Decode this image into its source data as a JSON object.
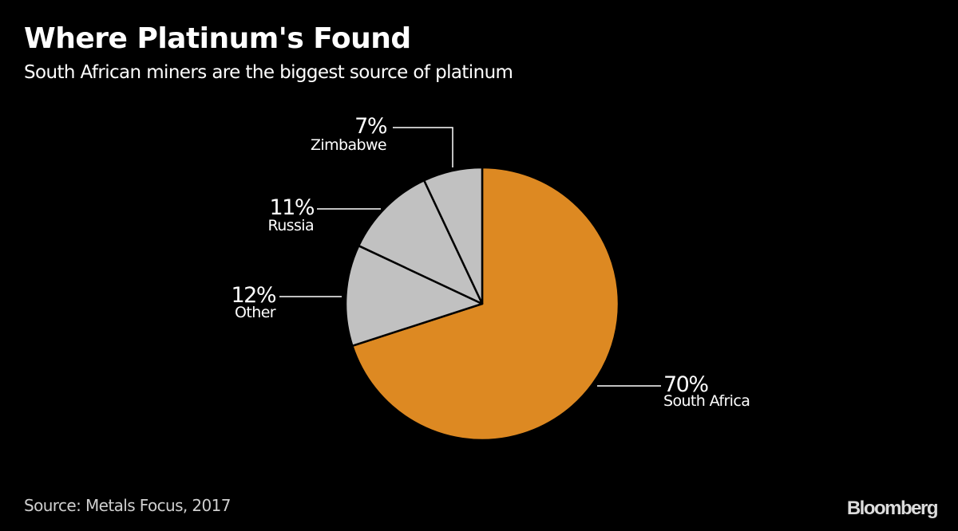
{
  "title": "Where Platinum's Found",
  "subtitle": "South African miners are the biggest source of platinum",
  "source": "Source: Metals Focus, 2017",
  "logo": "Bloomberg",
  "chart_data": {
    "type": "pie",
    "title": "Where Platinum's Found",
    "subtitle": "South African miners are the biggest source of platinum",
    "start": "top, clockwise",
    "slices": [
      {
        "label": "South Africa",
        "value": 70,
        "value_label": "70%",
        "color": "#dd8922"
      },
      {
        "label": "Other",
        "value": 12,
        "value_label": "12%",
        "color": "#c1c1c1"
      },
      {
        "label": "Russia",
        "value": 11,
        "value_label": "11%",
        "color": "#c1c1c1"
      },
      {
        "label": "Zimbabwe",
        "value": 7,
        "value_label": "7%",
        "color": "#c1c1c1"
      }
    ]
  }
}
